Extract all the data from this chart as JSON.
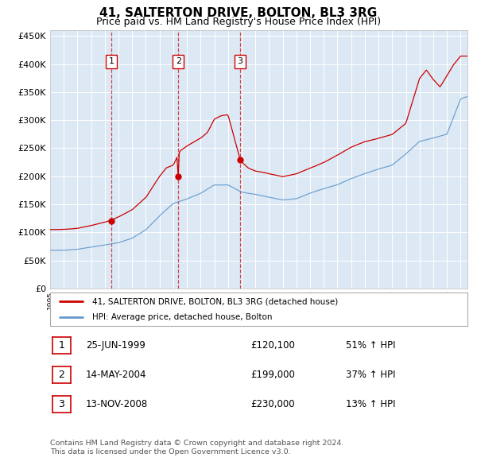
{
  "title": "41, SALTERTON DRIVE, BOLTON, BL3 3RG",
  "subtitle": "Price paid vs. HM Land Registry's House Price Index (HPI)",
  "plot_background": "#dce9f5",
  "ylim": [
    0,
    460000
  ],
  "yticks": [
    0,
    50000,
    100000,
    150000,
    200000,
    250000,
    300000,
    350000,
    400000,
    450000
  ],
  "xlim_start": 1995.0,
  "xlim_end": 2025.5,
  "sale_dates": [
    1999.486,
    2004.37,
    2008.869
  ],
  "sale_prices": [
    120100,
    199000,
    230000
  ],
  "sale_labels": [
    "1",
    "2",
    "3"
  ],
  "legend_red": "41, SALTERTON DRIVE, BOLTON, BL3 3RG (detached house)",
  "legend_blue": "HPI: Average price, detached house, Bolton",
  "table_data": [
    [
      "1",
      "25-JUN-1999",
      "£120,100",
      "51% ↑ HPI"
    ],
    [
      "2",
      "14-MAY-2004",
      "£199,000",
      "37% ↑ HPI"
    ],
    [
      "3",
      "13-NOV-2008",
      "£230,000",
      "13% ↑ HPI"
    ]
  ],
  "footer": "Contains HM Land Registry data © Crown copyright and database right 2024.\nThis data is licensed under the Open Government Licence v3.0.",
  "red_color": "#cc0000",
  "blue_color": "#6699cc",
  "vline_color": "#cc0000"
}
